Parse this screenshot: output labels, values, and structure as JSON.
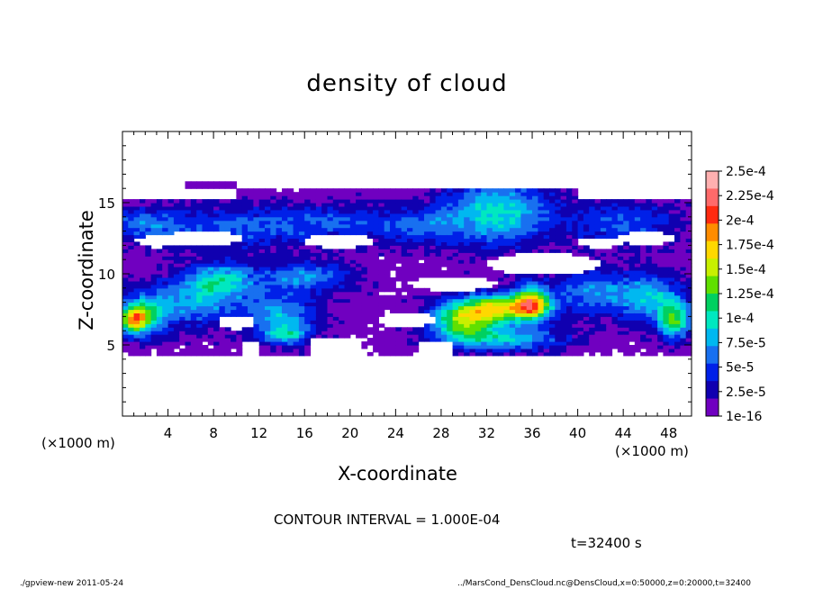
{
  "chart_data": {
    "type": "heatmap",
    "title": "density of cloud",
    "xlabel": "X-coordinate",
    "ylabel": "Z-coordinate",
    "x_unit": "(×1000 m)",
    "z_unit": "(×1000 m)",
    "xlim": [
      0,
      50
    ],
    "ylim": [
      0,
      20
    ],
    "x_ticks": [
      4,
      8,
      12,
      16,
      20,
      24,
      28,
      32,
      36,
      40,
      44,
      48
    ],
    "y_ticks": [
      5,
      10,
      15
    ],
    "colorbar": {
      "labels": [
        "2.5e-4",
        "2.25e-4",
        "2e-4",
        "1.75e-4",
        "1.5e-4",
        "1.25e-4",
        "1e-4",
        "7.5e-5",
        "5e-5",
        "2.5e-5",
        "1e-16"
      ],
      "colors": [
        "#ffb0b0",
        "#ff6a6a",
        "#ff2a10",
        "#ff8c00",
        "#ffd800",
        "#c8f000",
        "#60e000",
        "#00d060",
        "#00e8c0",
        "#00b8f0",
        "#1870f0",
        "#0020e8",
        "#1000b0",
        "#7000c0"
      ]
    },
    "contour_interval": "CONTOUR INTERVAL = 1.000E-04",
    "time": "t=32400 s"
  },
  "footer": {
    "left": "./gpview-new  2011-05-24",
    "right": "../MarsCond_DensCloud.nc@DensCloud,x=0:50000,z=0:20000,t=32400"
  }
}
